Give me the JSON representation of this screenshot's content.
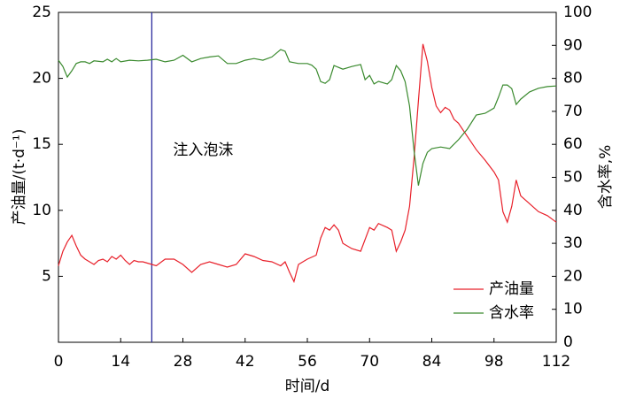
{
  "chart_data": {
    "type": "line",
    "xlabel": "时间/d",
    "ylabel": "产油量/(t·d⁻¹)",
    "y2label": "含水率,%",
    "xlim": [
      0,
      112
    ],
    "xticks": [
      0,
      14,
      28,
      42,
      56,
      70,
      84,
      98,
      112
    ],
    "ylim": [
      0,
      25
    ],
    "yticks": [
      5,
      10,
      15,
      20,
      25
    ],
    "y2lim": [
      0,
      100
    ],
    "y2ticks": [
      0,
      10,
      20,
      30,
      40,
      50,
      60,
      70,
      80,
      90,
      100
    ],
    "annotation": {
      "text": "注入泡沫",
      "x": 21,
      "color": "#2b2b9c"
    },
    "legend": "lower right",
    "series": [
      {
        "name": "产油量",
        "color": "#e8202a",
        "x": [
          0,
          1,
          2,
          3,
          4,
          5,
          6,
          7,
          8,
          9,
          10,
          11,
          12,
          13,
          14,
          15,
          16,
          17,
          18,
          19,
          20,
          22,
          24,
          26,
          28,
          30,
          32,
          34,
          36,
          38,
          40,
          42,
          44,
          46,
          48,
          50,
          51,
          52,
          53,
          54,
          56,
          58,
          59,
          60,
          61,
          62,
          63,
          64,
          66,
          68,
          70,
          71,
          72,
          74,
          75,
          76,
          77,
          78,
          79,
          80,
          81,
          82,
          83,
          84,
          85,
          86,
          87,
          88,
          89,
          90,
          92,
          93,
          94,
          96,
          98,
          99,
          100,
          101,
          102,
          103,
          104,
          106,
          108,
          110,
          112
        ],
        "values": [
          5.8,
          6.9,
          7.6,
          8.1,
          7.3,
          6.6,
          6.3,
          6.1,
          5.9,
          6.2,
          6.3,
          6.1,
          6.5,
          6.3,
          6.6,
          6.2,
          5.9,
          6.2,
          6.1,
          6.1,
          6.0,
          5.8,
          6.3,
          6.3,
          5.9,
          5.3,
          5.9,
          6.1,
          5.9,
          5.7,
          5.9,
          6.7,
          6.5,
          6.2,
          6.1,
          5.8,
          6.1,
          5.3,
          4.6,
          5.9,
          6.3,
          6.6,
          7.9,
          8.7,
          8.5,
          8.9,
          8.5,
          7.5,
          7.1,
          6.9,
          8.7,
          8.5,
          9.0,
          8.7,
          8.5,
          6.9,
          7.6,
          8.5,
          10.3,
          13.9,
          18.3,
          22.6,
          21.3,
          19.3,
          17.9,
          17.4,
          17.8,
          17.6,
          16.9,
          16.6,
          15.6,
          15.1,
          14.6,
          13.8,
          12.9,
          12.3,
          9.9,
          9.1,
          10.3,
          12.3,
          11.1,
          10.5,
          9.9,
          9.6,
          9.1
        ]
      },
      {
        "name": "含水率",
        "color": "#3a8a2e",
        "axis": "y2",
        "x": [
          0,
          1,
          2,
          3,
          4,
          5,
          6,
          7,
          8,
          10,
          11,
          12,
          13,
          14,
          16,
          18,
          20,
          22,
          24,
          26,
          28,
          30,
          32,
          34,
          36,
          38,
          40,
          42,
          44,
          46,
          48,
          50,
          51,
          52,
          54,
          56,
          57,
          58,
          59,
          60,
          61,
          62,
          64,
          66,
          68,
          69,
          70,
          71,
          72,
          74,
          75,
          76,
          77,
          78,
          79,
          80,
          81,
          82,
          83,
          84,
          86,
          88,
          90,
          92,
          94,
          96,
          98,
          99,
          100,
          101,
          102,
          103,
          104,
          106,
          108,
          110,
          112
        ],
        "values": [
          85.5,
          83.6,
          80.4,
          82.3,
          84.5,
          85,
          85,
          84.5,
          85.3,
          85,
          85.8,
          85,
          86,
          85,
          85.5,
          85.3,
          85.5,
          85.8,
          85,
          85.5,
          87,
          85,
          86,
          86.5,
          86.8,
          84.5,
          84.5,
          85.5,
          86,
          85.5,
          86.5,
          88.7,
          88.2,
          85,
          84.5,
          84.5,
          84,
          82.8,
          79,
          78.5,
          79.6,
          83.9,
          82.8,
          83.6,
          84.2,
          79.6,
          80.9,
          78.3,
          79.1,
          78.3,
          79.6,
          83.9,
          82.3,
          79,
          71.6,
          58.2,
          47.5,
          54.2,
          57.6,
          58.7,
          59.2,
          58.7,
          61.4,
          64.6,
          68.9,
          69.4,
          71,
          74.3,
          78,
          78,
          76.9,
          72.1,
          73.7,
          75.9,
          77,
          77.5,
          77.7
        ]
      }
    ]
  }
}
